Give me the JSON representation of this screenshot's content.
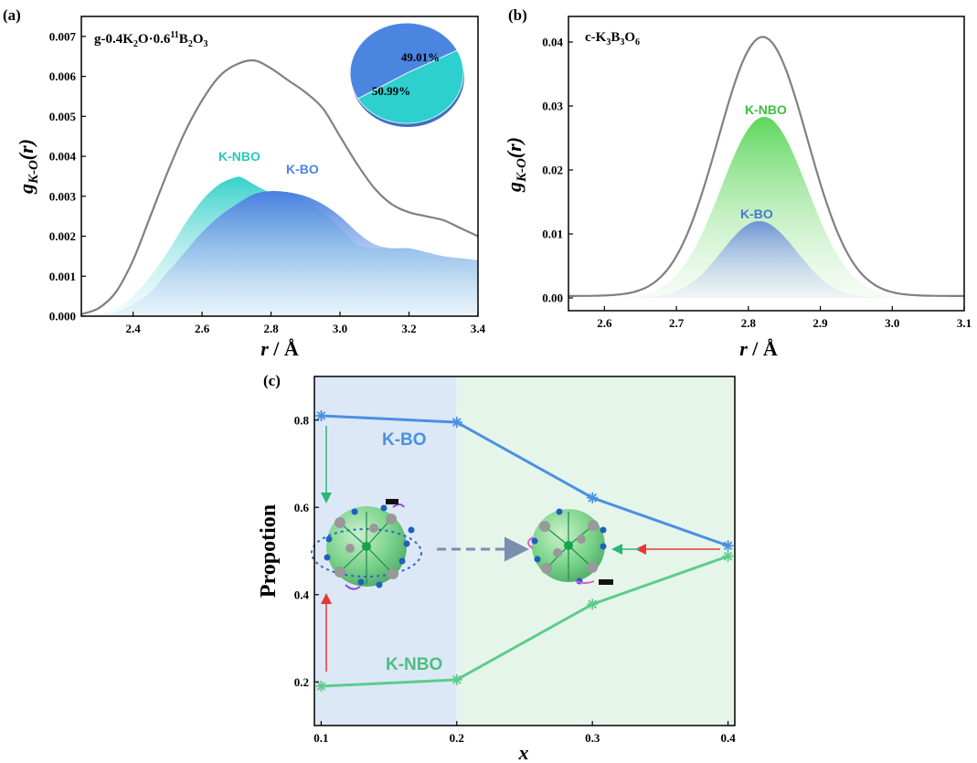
{
  "panels": {
    "a": {
      "label": "(a)",
      "title_parts": {
        "t1": "g-0.4K",
        "s1": "2",
        "t2": "O·0.6",
        "sup": "11",
        "t3": "B",
        "s2": "2",
        "t4": "O",
        "s3": "3"
      },
      "ylabel": {
        "main": "g",
        "sub": "K-O",
        "rest": "(r)"
      },
      "xlabel": {
        "main": "r",
        "rest": " / Å"
      },
      "series_labels": {
        "nbo": "K-NBO",
        "bo": "K-BO"
      },
      "pie": {
        "slices": [
          {
            "label": "49.01%",
            "value": 49.01,
            "color": "#2ecfcf"
          },
          {
            "label": "50.99%",
            "value": 50.99,
            "color": "#4a86e0"
          }
        ]
      }
    },
    "b": {
      "label": "(b)",
      "title_parts": {
        "t1": "c-K",
        "s1": "3",
        "t2": "B",
        "s2": "3",
        "t3": "O",
        "s3": "6"
      },
      "ylabel": {
        "main": "g",
        "sub": "K-O",
        "rest": "(r)"
      },
      "xlabel": {
        "main": "r",
        "rest": " / Å"
      },
      "series_labels": {
        "nbo": "K-NBO",
        "bo": "K-BO"
      }
    },
    "c": {
      "label": "(c)",
      "ylabel": "Propotion",
      "xlabel": "x",
      "series_labels": {
        "bo": "K-BO",
        "nbo": "K-NBO"
      }
    }
  },
  "colors": {
    "total": "#808080",
    "nbo_a": "#3ccfc5",
    "bo": "#4a86e0",
    "nbo_b": "#5fd35f",
    "nbo_c": "#5dcc8c",
    "bo_c": "#4a90e2",
    "bg_left": "#dde8f7",
    "bg_right": "#e6f5ea"
  },
  "chart_data": [
    {
      "type": "area",
      "panel": "a",
      "xlim": [
        2.25,
        3.4
      ],
      "ylim": [
        0,
        0.0075
      ],
      "xticks": [
        "2.4",
        "2.6",
        "2.8",
        "3.0",
        "3.2",
        "3.4"
      ],
      "yticks": [
        "0.000",
        "0.001",
        "0.002",
        "0.003",
        "0.004",
        "0.005",
        "0.006",
        "0.007"
      ],
      "series": [
        {
          "name": "total",
          "x": [
            2.25,
            2.3,
            2.35,
            2.4,
            2.45,
            2.5,
            2.55,
            2.6,
            2.65,
            2.7,
            2.75,
            2.8,
            2.85,
            2.9,
            2.95,
            3.0,
            3.05,
            3.1,
            3.15,
            3.2,
            3.25,
            3.3,
            3.35,
            3.4
          ],
          "y": [
            5e-05,
            0.0002,
            0.0006,
            0.0014,
            0.0025,
            0.0036,
            0.0046,
            0.0054,
            0.006,
            0.0063,
            0.0064,
            0.0062,
            0.0059,
            0.0056,
            0.0052,
            0.0045,
            0.0038,
            0.0032,
            0.0028,
            0.0026,
            0.0025,
            0.0024,
            0.0022,
            0.002
          ]
        },
        {
          "name": "K-NBO",
          "x": [
            2.25,
            2.3,
            2.35,
            2.4,
            2.45,
            2.5,
            2.55,
            2.6,
            2.65,
            2.7,
            2.72,
            2.75,
            2.8,
            2.85,
            2.9,
            2.95,
            3.0,
            3.05,
            3.1,
            3.15,
            3.2,
            3.25,
            3.3,
            3.35,
            3.4
          ],
          "y": [
            0,
            5e-05,
            0.0002,
            0.0005,
            0.001,
            0.0016,
            0.0023,
            0.0029,
            0.0033,
            0.00348,
            0.00345,
            0.0033,
            0.0031,
            0.0031,
            0.0029,
            0.0026,
            0.0022,
            0.0018,
            0.0017,
            0.0017,
            0.0017,
            0.0016,
            0.0015,
            0.00145,
            0.0014
          ]
        },
        {
          "name": "K-BO",
          "x": [
            2.25,
            2.3,
            2.35,
            2.4,
            2.45,
            2.5,
            2.55,
            2.6,
            2.65,
            2.7,
            2.75,
            2.8,
            2.85,
            2.9,
            2.95,
            3.0,
            3.05,
            3.1,
            3.15,
            3.2,
            3.25,
            3.3,
            3.35,
            3.4
          ],
          "y": [
            0,
            2e-05,
            0.0001,
            0.0003,
            0.0006,
            0.0011,
            0.0016,
            0.0021,
            0.0025,
            0.0028,
            0.00305,
            0.00313,
            0.0031,
            0.003,
            0.0028,
            0.0025,
            0.0021,
            0.0018,
            0.0017,
            0.0017,
            0.0016,
            0.0015,
            0.00145,
            0.0014
          ]
        }
      ]
    },
    {
      "type": "area",
      "panel": "b",
      "xlim": [
        2.55,
        3.1
      ],
      "ylim": [
        -0.002,
        0.044
      ],
      "xticks": [
        "2.6",
        "2.7",
        "2.8",
        "2.9",
        "3.0",
        "3.1"
      ],
      "yticks": [
        "0.00",
        "0.01",
        "0.02",
        "0.03",
        "0.04"
      ],
      "series": [
        {
          "name": "total",
          "gauss": {
            "amp": 0.0405,
            "mu": 2.82,
            "sigma": 0.062
          },
          "baseline": 0.0003
        },
        {
          "name": "K-NBO",
          "gauss": {
            "amp": 0.0283,
            "mu": 2.822,
            "sigma": 0.06
          }
        },
        {
          "name": "K-BO",
          "gauss": {
            "amp": 0.012,
            "mu": 2.815,
            "sigma": 0.052
          }
        }
      ]
    },
    {
      "type": "line",
      "panel": "c",
      "xlim": [
        0.095,
        0.405
      ],
      "ylim": [
        0.1,
        0.9
      ],
      "xticks": [
        "0.1",
        "0.2",
        "0.3",
        "0.4"
      ],
      "yticks": [
        "0.2",
        "0.4",
        "0.6",
        "0.8"
      ],
      "x": [
        0.1,
        0.2,
        0.3,
        0.4
      ],
      "series": [
        {
          "name": "K-BO",
          "values": [
            0.81,
            0.795,
            0.622,
            0.512
          ]
        },
        {
          "name": "K-NBO",
          "values": [
            0.19,
            0.205,
            0.378,
            0.488
          ]
        }
      ]
    }
  ]
}
